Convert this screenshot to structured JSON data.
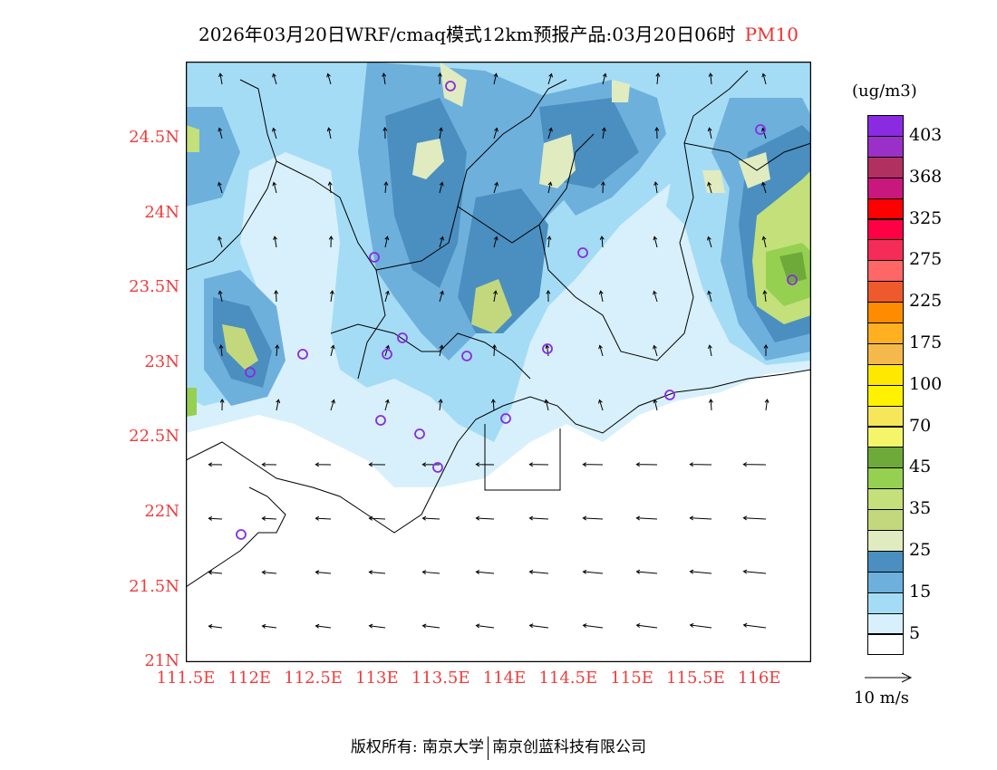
{
  "title": {
    "main": "2026年03月20日WRF/cmaq模式12km预报产品:03月20日06时",
    "variable": "PM10"
  },
  "axes": {
    "lat_labels": [
      "24.5N",
      "24N",
      "23.5N",
      "23N",
      "22.5N",
      "22N",
      "21.5N",
      "21N"
    ],
    "lon_labels": [
      "111.5E",
      "112E",
      "112.5E",
      "113E",
      "113.5E",
      "114E",
      "114.5E",
      "115E",
      "115.5E",
      "116E"
    ]
  },
  "legend": {
    "units": "(ug/m3)",
    "colors": [
      "#8a2be2",
      "#9b30c8",
      "#b03060",
      "#c8187e",
      "#ff0000",
      "#ff0044",
      "#f52c58",
      "#ff6666",
      "#ee5a2c",
      "#ff8c00",
      "#ffb020",
      "#f5b84a",
      "#ffe800",
      "#fff200",
      "#f5e65a",
      "#f5f56a",
      "#6eaa3a",
      "#96d050",
      "#c3e07a",
      "#c3d87c",
      "#e0ebc0",
      "#4a8fc0",
      "#6eb0dc",
      "#a5dcf5",
      "#d8f0fb",
      "#ffffff"
    ],
    "labels": [
      "403",
      "368",
      "325",
      "275",
      "225",
      "175",
      "100",
      "70",
      "45",
      "35",
      "25",
      "15",
      "5"
    ],
    "wind_ref": "10 m/s"
  },
  "footer": {
    "left": "版权所有: 南京大学",
    "right": "南京创蓝科技有限公司"
  }
}
